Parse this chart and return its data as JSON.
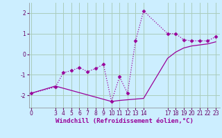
{
  "line1_x": [
    0,
    3,
    4,
    5,
    6,
    7,
    8,
    9,
    10,
    11,
    12,
    13,
    14,
    17,
    18,
    19,
    20,
    21,
    22,
    23
  ],
  "line1_y": [
    -1.9,
    -1.6,
    -0.9,
    -0.8,
    -0.65,
    -0.85,
    -0.7,
    -0.5,
    -2.3,
    -1.1,
    -1.9,
    0.65,
    2.1,
    1.0,
    1.0,
    0.7,
    0.65,
    0.65,
    0.65,
    0.85
  ],
  "line2_x": [
    0,
    3,
    10,
    11,
    14,
    17,
    18,
    19,
    20,
    21,
    22,
    23
  ],
  "line2_y": [
    -1.9,
    -1.55,
    -2.3,
    -2.25,
    -2.15,
    -0.2,
    0.1,
    0.3,
    0.4,
    0.45,
    0.5,
    0.6
  ],
  "line_color": "#990099",
  "marker": "D",
  "markersize": 2.5,
  "linewidth": 0.9,
  "xlabel": "Windchill (Refroidissement éolien,°C)",
  "xlabel_fontsize": 6.5,
  "yticks": [
    -2,
    -1,
    0,
    1,
    2
  ],
  "xticks": [
    0,
    3,
    4,
    5,
    6,
    7,
    8,
    9,
    10,
    11,
    12,
    13,
    14,
    17,
    18,
    19,
    20,
    21,
    22,
    23
  ],
  "xlim": [
    -0.3,
    23.5
  ],
  "ylim": [
    -2.6,
    2.5
  ],
  "bg_color": "#cceeff",
  "grid_color": "#aaccbb",
  "tick_fontsize": 5.5
}
